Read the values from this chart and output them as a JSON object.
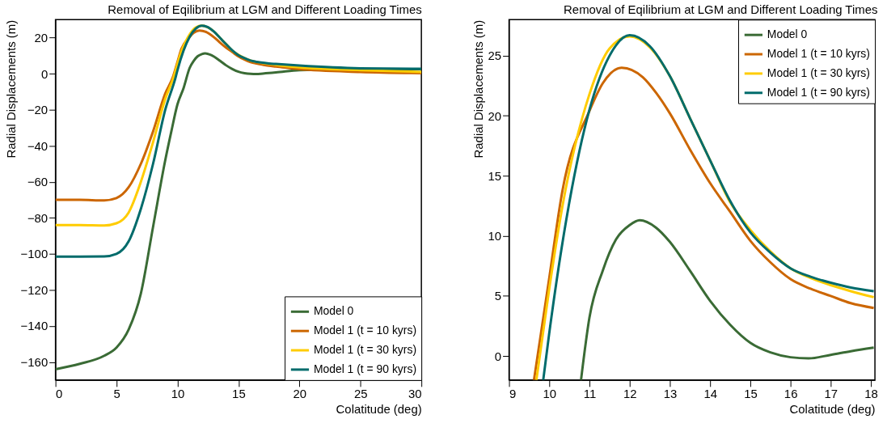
{
  "chart_data": [
    {
      "type": "line",
      "title": "Removal of Eqilibrium at LGM and Different Loading Times",
      "xlabel": "Colatitude (deg)",
      "ylabel": "Radial Displacements (m)",
      "xlim": [
        0,
        30
      ],
      "ylim": [
        -170,
        30
      ],
      "xticks": [
        0,
        5,
        10,
        15,
        20,
        25,
        30
      ],
      "yticks": [
        -160,
        -140,
        -120,
        -100,
        -80,
        -60,
        -40,
        -20,
        0,
        20
      ],
      "grid": false,
      "legend": "bottom right",
      "series": [
        {
          "name": "Model 0",
          "color": "#3a6b35",
          "x": [
            0,
            2,
            4,
            5,
            6,
            7,
            8,
            9,
            9.5,
            10,
            10.5,
            11,
            11.33,
            11.66,
            12,
            12.25,
            12.65,
            13,
            13.5,
            14,
            14.5,
            15,
            15.5,
            16,
            16.45,
            17,
            17.5,
            18.07,
            20,
            25,
            30
          ],
          "values": [
            -164,
            -161,
            -156.5,
            -152,
            -142,
            -122,
            -85,
            -48,
            -32,
            -17,
            -8,
            3.2,
            7.1,
            9.7,
            10.9,
            11.3,
            10.7,
            9.5,
            7.1,
            4.6,
            2.6,
            1.1,
            0.3,
            -0.1,
            -0.2,
            0.1,
            0.4,
            0.7,
            2,
            2.5,
            2.5
          ]
        },
        {
          "name": "Model 1 (t = 10 kyrs)",
          "color": "#cc6600",
          "x": [
            0,
            2,
            4,
            5,
            6,
            7,
            8,
            9,
            9.62,
            10,
            10.33,
            11,
            11.33,
            11.8,
            12.33,
            12.66,
            13,
            13.5,
            14,
            14.5,
            15,
            15.5,
            16,
            16.5,
            17,
            17.5,
            18.07,
            20,
            25,
            30
          ],
          "values": [
            -70,
            -70,
            -70.3,
            -69,
            -63,
            -50,
            -32,
            -11,
            -2,
            6.5,
            13.8,
            20.4,
            22.7,
            24.0,
            23.2,
            21.9,
            20.2,
            17.2,
            14.4,
            12.0,
            9.6,
            7.8,
            6.4,
            5.6,
            5.0,
            4.4,
            4.0,
            2.5,
            1,
            0.3
          ]
        },
        {
          "name": "Model 1 (t = 30 kyrs)",
          "color": "#ffcc00",
          "x": [
            0,
            2,
            4,
            5,
            6,
            7,
            8,
            9,
            9.68,
            10,
            10.33,
            11,
            11.5,
            12,
            12.5,
            13,
            13.5,
            14,
            14.5,
            15,
            15.5,
            16,
            16.5,
            17,
            17.5,
            18.07,
            20,
            25,
            30
          ],
          "values": [
            -84,
            -84,
            -84.2,
            -83,
            -77,
            -60,
            -38,
            -14,
            -2,
            5.6,
            12.5,
            21.8,
            25.6,
            26.6,
            25.7,
            23.3,
            19.8,
            16.3,
            12.8,
            10.5,
            8.7,
            7.3,
            6.5,
            5.9,
            5.4,
            4.9,
            3.5,
            2,
            1
          ]
        },
        {
          "name": "Model 1 (t = 90 kyrs)",
          "color": "#006b6b",
          "x": [
            0,
            2,
            4,
            5,
            6,
            7,
            8,
            9,
            9.85,
            10,
            10.5,
            11,
            11.5,
            12,
            12.5,
            13,
            13.5,
            14,
            14.5,
            15,
            15.5,
            16,
            16.5,
            17,
            17.5,
            18.07,
            20,
            25,
            30
          ],
          "values": [
            -101.5,
            -101.5,
            -101.4,
            -100,
            -93,
            -75,
            -50,
            -20,
            -2,
            1.9,
            12.8,
            20.5,
            25,
            26.7,
            25.8,
            23.3,
            19.8,
            16.3,
            12.9,
            10.3,
            8.6,
            7.3,
            6.6,
            6.1,
            5.7,
            5.4,
            4.5,
            3,
            2.7
          ]
        }
      ]
    },
    {
      "type": "line",
      "title": "Removal of Eqilibrium at LGM and Different Loading Times",
      "xlabel": "Colatitude (deg)",
      "ylabel": "Radial Displacements (m)",
      "xlim": [
        9,
        18.1
      ],
      "ylim": [
        -2,
        28
      ],
      "xticks": [
        9,
        10,
        11,
        12,
        13,
        14,
        15,
        16,
        17,
        18
      ],
      "yticks": [
        0,
        5,
        10,
        15,
        20,
        25
      ],
      "grid": false,
      "legend": "top right",
      "series": [
        {
          "name": "Model 0",
          "color": "#3a6b35",
          "x": [
            10.79,
            11,
            11.33,
            11.66,
            12,
            12.25,
            12.65,
            13,
            13.5,
            14,
            14.5,
            15,
            15.5,
            16,
            16.45,
            17,
            17.5,
            18.07
          ],
          "values": [
            -2,
            3.2,
            7.1,
            9.7,
            10.9,
            11.3,
            10.7,
            9.5,
            7.1,
            4.6,
            2.6,
            1.1,
            0.3,
            -0.1,
            -0.2,
            0.1,
            0.4,
            0.7
          ]
        },
        {
          "name": "Model 1 (t = 10 kyrs)",
          "color": "#cc6600",
          "x": [
            9.62,
            10,
            10.33,
            11,
            11.33,
            11.8,
            12.33,
            12.66,
            13,
            13.5,
            14,
            14.5,
            15,
            15.5,
            16,
            16.5,
            17,
            17.5,
            18.07
          ],
          "values": [
            -2,
            6.5,
            13.8,
            20.4,
            22.7,
            24.0,
            23.2,
            21.9,
            20.2,
            17.2,
            14.4,
            12.0,
            9.6,
            7.8,
            6.4,
            5.6,
            5.0,
            4.4,
            4.0
          ]
        },
        {
          "name": "Model 1 (t = 30 kyrs)",
          "color": "#ffcc00",
          "x": [
            9.68,
            10,
            10.33,
            11,
            11.5,
            12,
            12.5,
            13,
            13.5,
            14,
            14.5,
            15,
            15.5,
            16,
            16.5,
            17,
            17.5,
            18.07
          ],
          "values": [
            -2,
            5.6,
            12.5,
            21.8,
            25.6,
            26.6,
            25.7,
            23.3,
            19.8,
            16.3,
            12.8,
            10.5,
            8.7,
            7.3,
            6.5,
            5.9,
            5.4,
            4.9
          ]
        },
        {
          "name": "Model 1 (t = 90 kyrs)",
          "color": "#006b6b",
          "x": [
            9.85,
            10,
            10.5,
            11,
            11.5,
            12,
            12.5,
            13,
            13.5,
            14,
            14.5,
            15,
            15.5,
            16,
            16.5,
            17,
            17.5,
            18.07
          ],
          "values": [
            -2,
            1.9,
            12.8,
            20.5,
            25,
            26.7,
            25.8,
            23.3,
            19.8,
            16.3,
            12.9,
            10.3,
            8.6,
            7.3,
            6.6,
            6.1,
            5.7,
            5.4
          ]
        }
      ]
    }
  ]
}
